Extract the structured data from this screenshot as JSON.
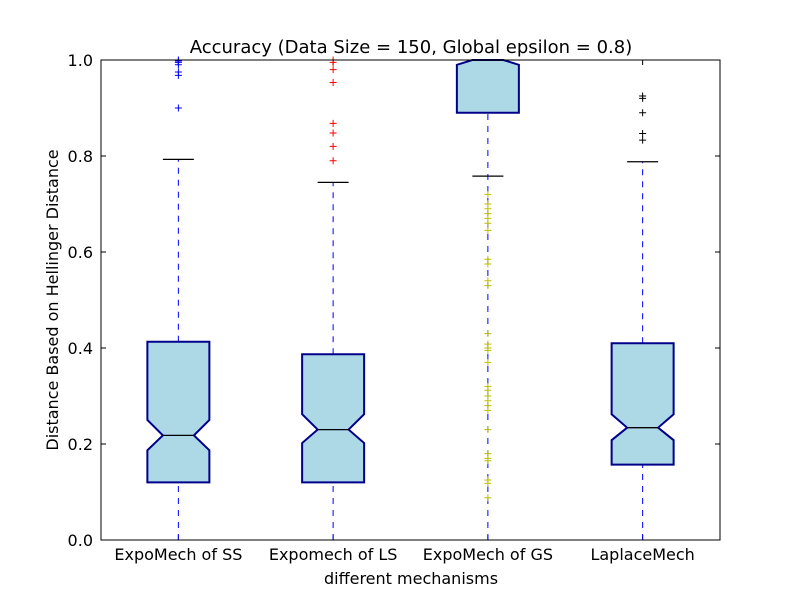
{
  "chart_data": {
    "type": "boxplot",
    "title": "Accuracy (Data Size = 150, Global epsilon = 0.8)",
    "xlabel": "different mechanisms",
    "ylabel": "Distance Based on Hellinger Distance",
    "ylim": [
      0.0,
      1.0
    ],
    "yticks": [
      0.0,
      0.2,
      0.4,
      0.6,
      0.8,
      1.0
    ],
    "ytick_labels": [
      "0.0",
      "0.2",
      "0.4",
      "0.6",
      "0.8",
      "1.0"
    ],
    "grid": false,
    "notched": true,
    "box_fill": "#add8e6",
    "box_edge": "#00008b",
    "whisker_color": "#0000ff",
    "cap_color": "#000000",
    "median_color": "#000000",
    "categories": [
      "ExpoMech of SS",
      "Expomech of LS",
      "ExpoMech of GS",
      "LaplaceMech"
    ],
    "boxes": [
      {
        "label": "ExpoMech of SS",
        "whisker_low": 0.0,
        "q1": 0.12,
        "median": 0.218,
        "q3": 0.413,
        "whisker_high": 0.793,
        "notch_low": 0.187,
        "notch_high": 0.25,
        "outliers": [
          0.9,
          0.968,
          0.975,
          0.99,
          0.995,
          0.998,
          1.0
        ],
        "outlier_color": "#0000ff"
      },
      {
        "label": "Expomech of LS",
        "whisker_low": 0.0,
        "q1": 0.12,
        "median": 0.23,
        "q3": 0.387,
        "whisker_high": 0.745,
        "notch_low": 0.202,
        "notch_high": 0.262,
        "outliers": [
          0.79,
          0.82,
          0.848,
          0.868,
          0.953,
          0.98,
          0.995,
          1.0
        ],
        "outlier_color": "#ff0000"
      },
      {
        "label": "ExpoMech of GS",
        "whisker_low": 0.0,
        "q1": 0.89,
        "median": 1.0,
        "q3": 1.0,
        "whisker_high": 1.0,
        "notch_low": 0.99,
        "notch_high": 1.0,
        "low_cap": 0.758,
        "outliers": [
          0.72,
          0.7,
          0.69,
          0.68,
          0.67,
          0.66,
          0.645,
          0.585,
          0.575,
          0.54,
          0.53,
          0.43,
          0.408,
          0.4,
          0.395,
          0.37,
          0.32,
          0.312,
          0.3,
          0.29,
          0.28,
          0.27,
          0.23,
          0.18,
          0.17,
          0.165,
          0.125,
          0.118,
          0.088
        ],
        "outlier_color": "#bfbf00"
      },
      {
        "label": "LaplaceMech",
        "whisker_low": 0.0,
        "q1": 0.157,
        "median": 0.234,
        "q3": 0.41,
        "whisker_high": 0.788,
        "notch_low": 0.208,
        "notch_high": 0.262,
        "outliers": [
          0.833,
          0.847,
          0.89,
          0.92,
          0.925
        ],
        "outlier_color": "#000000"
      }
    ]
  }
}
